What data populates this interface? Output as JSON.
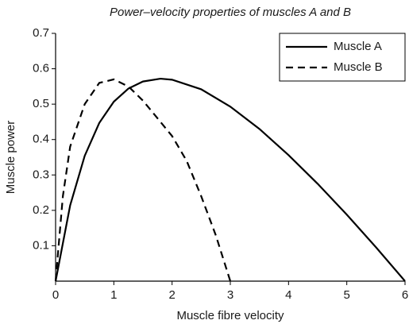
{
  "chart_data": {
    "type": "line",
    "title": "Power–velocity properties of muscles A and B",
    "xlabel": "Muscle fibre velocity",
    "ylabel": "Muscle power",
    "series": [
      {
        "name": "Muscle A",
        "color": "#000000",
        "line_style": "solid",
        "x": [
          0,
          0.25,
          0.5,
          0.75,
          1,
          1.25,
          1.5,
          1.8,
          2,
          2.5,
          3,
          3.5,
          4,
          4.5,
          5,
          5.5,
          6
        ],
        "values": [
          0,
          0.214,
          0.354,
          0.447,
          0.507,
          0.544,
          0.564,
          0.572,
          0.569,
          0.542,
          0.493,
          0.43,
          0.356,
          0.275,
          0.188,
          0.096,
          0
        ]
      },
      {
        "name": "Muscle B",
        "color": "#000000",
        "line_style": "dashed",
        "x": [
          0,
          0.125,
          0.25,
          0.5,
          0.75,
          1,
          1.25,
          1.5,
          1.75,
          2,
          2.25,
          2.5,
          2.75,
          3
        ],
        "values": [
          0,
          0.24,
          0.38,
          0.5,
          0.56,
          0.57,
          0.55,
          0.51,
          0.46,
          0.41,
          0.34,
          0.24,
          0.13,
          0
        ]
      }
    ],
    "xlim": [
      0,
      6
    ],
    "xticks": [
      0,
      1,
      2,
      3,
      4,
      5,
      6
    ],
    "ylim": [
      0,
      0.7
    ],
    "yticks": [
      0.1,
      0.2,
      0.3,
      0.4,
      0.5,
      0.6,
      0.7
    ],
    "legend": "upper right",
    "grid": false
  }
}
